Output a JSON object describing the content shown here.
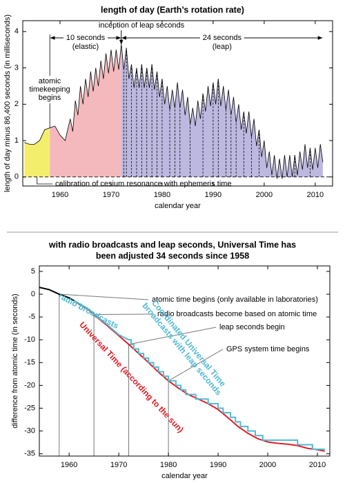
{
  "chart_data": [
    {
      "type": "line",
      "title": "length of day (Earth’s rotation rate)",
      "xlabel": "calendar year",
      "ylabel": "length of day minus 86,400 seconds (in milliseconds)",
      "xlim": [
        1952.7,
        2013.4
      ],
      "ylim": [
        -0.25,
        4.3
      ],
      "xticks": [
        1960,
        1970,
        1980,
        1990,
        2000,
        2010
      ],
      "yticks": [
        0,
        1,
        2,
        3,
        4
      ],
      "series": [
        {
          "color": "#000000",
          "x": [
            1953,
            1954,
            1955,
            1956,
            1957,
            1958,
            1959,
            1960,
            1961,
            1962,
            1962.5,
            1963,
            1963.5,
            1964,
            1964.5,
            1965,
            1965.5,
            1966,
            1966.5,
            1967,
            1967.5,
            1968,
            1968.5,
            1969,
            1969.5,
            1970,
            1970.5,
            1971,
            1971.5,
            1972,
            1972.5,
            1973,
            1973.5,
            1974,
            1974.5,
            1975,
            1975.5,
            1976,
            1976.5,
            1977,
            1977.5,
            1978,
            1978.5,
            1979,
            1979.5,
            1980,
            1980.5,
            1981,
            1981.5,
            1982,
            1982.5,
            1983,
            1983.5,
            1984,
            1984.5,
            1985,
            1985.5,
            1986,
            1986.5,
            1987,
            1987.5,
            1988,
            1988.5,
            1989,
            1989.5,
            1990,
            1990.5,
            1991,
            1991.5,
            1992,
            1992.5,
            1993,
            1993.5,
            1994,
            1994.5,
            1995,
            1995.5,
            1996,
            1996.5,
            1997,
            1997.5,
            1998,
            1998.5,
            1999,
            1999.5,
            2000,
            2000.5,
            2001,
            2001.5,
            2002,
            2002.5,
            2003,
            2003.5,
            2004,
            2004.5,
            2005,
            2005.5,
            2006,
            2006.5,
            2007,
            2007.5,
            2008,
            2008.5,
            2009,
            2009.5,
            2010,
            2010.5,
            2011,
            2011.5
          ],
          "values": [
            0.95,
            0.9,
            0.9,
            1.0,
            1.3,
            1.35,
            1.4,
            1.15,
            1.0,
            1.6,
            1.25,
            2.1,
            1.7,
            2.5,
            2.0,
            2.7,
            2.2,
            2.9,
            2.35,
            3.0,
            2.5,
            3.2,
            2.7,
            3.4,
            2.85,
            3.5,
            2.9,
            3.5,
            2.95,
            3.65,
            2.95,
            3.55,
            2.7,
            3.1,
            2.45,
            3.0,
            2.45,
            3.1,
            2.45,
            3.0,
            2.45,
            3.1,
            2.4,
            2.9,
            2.2,
            2.7,
            2.0,
            2.5,
            1.85,
            2.4,
            1.9,
            2.6,
            1.9,
            2.4,
            1.7,
            2.2,
            1.45,
            1.9,
            1.4,
            2.1,
            1.6,
            2.3,
            1.8,
            2.5,
            1.95,
            2.6,
            2.0,
            2.7,
            1.95,
            2.5,
            1.85,
            2.4,
            1.7,
            2.2,
            1.5,
            2.0,
            1.3,
            1.8,
            1.2,
            1.8,
            1.1,
            1.6,
            0.85,
            1.3,
            0.55,
            1.0,
            0.25,
            0.7,
            0.05,
            0.6,
            -0.05,
            0.5,
            -0.05,
            0.6,
            0,
            0.6,
            0,
            0.6,
            0.05,
            0.7,
            0.2,
            0.9,
            0.25,
            0.8,
            0.2,
            0.8,
            0.25,
            0.9,
            0.4
          ]
        }
      ],
      "regions": [
        {
          "from": 1953,
          "to": 1958,
          "color": "#f3ee6c"
        },
        {
          "from": 1958,
          "to": 1972,
          "color": "#f4b9bd"
        },
        {
          "from": 1972,
          "to": 2011.5,
          "color": "#bcb8df"
        }
      ],
      "leap_seconds": [
        1972.5,
        1973,
        1974,
        1975,
        1976,
        1977,
        1978,
        1979,
        1980,
        1981.5,
        1982.5,
        1983.5,
        1985.5,
        1988,
        1990,
        1991,
        1992.5,
        1993.5,
        1994.5,
        1996,
        1997.5,
        1999,
        2006,
        2009
      ],
      "leap_label": "inception of leap seconds",
      "elastic_label": [
        "10 seconds",
        "(elastic)"
      ],
      "leap_span_label": [
        "24 seconds",
        "(leap)"
      ],
      "atomic_label": [
        "atomic",
        "timekeeping",
        "begins"
      ],
      "cesium_label": "calibration of cesium resonance with ephemeris time"
    },
    {
      "type": "line",
      "title": [
        "with radio broadcasts and leap seconds, Universal Time has",
        "been adjusted 34 seconds since 1958"
      ],
      "xlabel": "calendar year",
      "ylabel": "difference from atomic time (in seconds)",
      "xlim": [
        1954,
        2012.5
      ],
      "ylim": [
        -35.5,
        6.2
      ],
      "xticks": [
        1960,
        1970,
        1980,
        1990,
        2000,
        2010
      ],
      "yticks": [
        5,
        0,
        -5,
        -10,
        -15,
        -20,
        -25,
        -30,
        -35
      ],
      "series": [
        {
          "color": "#000000",
          "x": [
            1954,
            1956,
            1958,
            1960,
            1961
          ],
          "values": [
            1.5,
            1.0,
            0,
            -0.8,
            -1.4
          ]
        },
        {
          "color": "#e31b23",
          "x": [
            1961,
            1962,
            1964,
            1966,
            1968,
            1970,
            1972,
            1974,
            1976,
            1978,
            1980,
            1982,
            1984,
            1986,
            1988,
            1990,
            1992,
            1994,
            1996,
            1998,
            2000,
            2002,
            2004,
            2006,
            2008,
            2010,
            2011.5
          ],
          "values": [
            -1.4,
            -2.2,
            -3.5,
            -5.4,
            -7.2,
            -9.1,
            -11.0,
            -13.0,
            -15.0,
            -17.1,
            -19.0,
            -20.6,
            -22.0,
            -23.0,
            -24.0,
            -25.3,
            -27.1,
            -29.0,
            -30.5,
            -31.7,
            -32.4,
            -32.7,
            -32.9,
            -33.2,
            -33.8,
            -34.1,
            -34.4
          ]
        },
        {
          "color": "#4fb9d3",
          "x": [
            1961,
            1964,
            1966,
            1968,
            1970,
            1972,
            1972.5,
            1972.5,
            1973,
            1973,
            1974,
            1974,
            1975,
            1975,
            1976,
            1976,
            1977,
            1977,
            1978,
            1978,
            1979,
            1979,
            1980,
            1980,
            1981.5,
            1981.5,
            1982.5,
            1982.5,
            1983.5,
            1983.5,
            1985.5,
            1985.5,
            1988,
            1988,
            1990,
            1990,
            1991,
            1991,
            1992.5,
            1992.5,
            1993.5,
            1993.5,
            1994.5,
            1994.5,
            1996,
            1996,
            1997.5,
            1997.5,
            1999,
            1999,
            2006,
            2006,
            2009,
            2009,
            2011.5
          ],
          "values": [
            -1.4,
            -3.3,
            -5.2,
            -7.0,
            -8.9,
            -10,
            -10,
            -11,
            -11,
            -12,
            -12,
            -13,
            -13,
            -14,
            -14,
            -15,
            -15,
            -16,
            -16,
            -17,
            -17,
            -18,
            -18,
            -19,
            -19,
            -20,
            -20,
            -21,
            -21,
            -22,
            -22,
            -23,
            -23,
            -24,
            -24,
            -25,
            -25,
            -26,
            -26,
            -27,
            -27,
            -28,
            -28,
            -29,
            -29,
            -30,
            -30,
            -31,
            -31,
            -32,
            -32,
            -33,
            -33,
            -34,
            -34
          ]
        }
      ],
      "events": [
        {
          "x": 1958,
          "label": "atomic time begins (only available in laboratories)"
        },
        {
          "x": 1965,
          "label": "radio broadcasts become based on atomic time"
        },
        {
          "x": 1972,
          "label": "leap seconds begin"
        },
        {
          "x": 1980,
          "label": "GPS system time begins"
        }
      ],
      "annotations": [
        {
          "lines": [
            "radio broadcasts"
          ],
          "color": "#4fb9d3"
        },
        {
          "lines": [
            "Coordinated Universal Time",
            "broadcasts with leap seconds"
          ],
          "color": "#4fb9d3"
        },
        {
          "lines": [
            "Universal Time (according to the sun)"
          ],
          "color": "#e31b23"
        }
      ]
    }
  ]
}
